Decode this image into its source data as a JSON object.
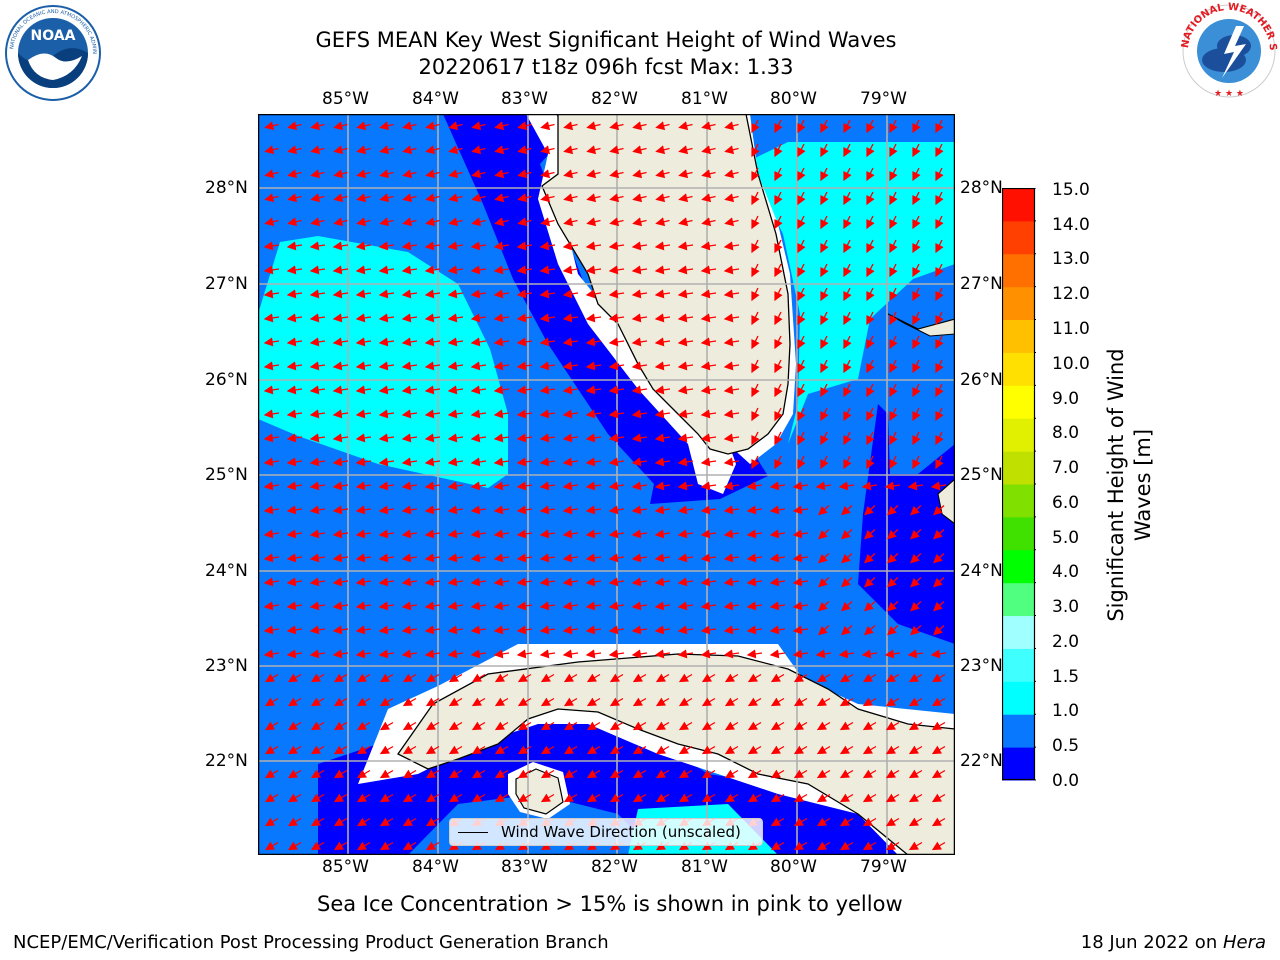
{
  "title": {
    "line1": "GEFS MEAN Key West Significant Height of Wind Waves",
    "line2": "20220617 t18z 096h fcst   Max: 1.33"
  },
  "logos": {
    "left": {
      "name": "NOAA",
      "ring_text": "NATIONAL OCEANIC AND ATMOSPHERIC ADMINISTRATION · U.S. DEPARTMENT OF COMMERCE",
      "color": "#1b5fa8"
    },
    "right": {
      "name": "NATIONAL WEATHER SERVICE",
      "color": "#e31b23"
    }
  },
  "map": {
    "lon_ticks": [
      "85°W",
      "84°W",
      "83°W",
      "82°W",
      "81°W",
      "80°W",
      "79°W"
    ],
    "lat_ticks": [
      "28°N",
      "27°N",
      "26°N",
      "25°N",
      "24°N",
      "23°N",
      "22°N"
    ],
    "lon_range": [
      -86.0,
      -78.3
    ],
    "lat_range": [
      21.0,
      28.75
    ],
    "land_color": "#eeecdc",
    "arrow_color": "#ff0000",
    "legend": "Wind Wave Direction (unscaled)"
  },
  "colorbar": {
    "label": "Significant Height of Wind Waves [m]",
    "ticks": [
      "15.0",
      "14.0",
      "13.0",
      "12.0",
      "11.0",
      "10.0",
      "9.0",
      "8.0",
      "7.0",
      "6.0",
      "5.0",
      "4.0",
      "3.0",
      "2.0",
      "1.5",
      "1.0",
      "0.5",
      "0.0"
    ],
    "colors": [
      "#0000ff",
      "#0878ff",
      "#00ffff",
      "#40ffff",
      "#a0ffff",
      "#50ff80",
      "#00ff00",
      "#40e000",
      "#80e000",
      "#c0e000",
      "#e0f000",
      "#ffff00",
      "#ffe000",
      "#ffc000",
      "#ff9000",
      "#ff7000",
      "#ff4000",
      "#ff1000"
    ]
  },
  "note": "Sea Ice Concentration > 15% is shown in pink to yellow",
  "footer": {
    "left": "NCEP/EMC/Verification Post Processing Product Generation Branch",
    "right_date": "18 Jun 2022 on ",
    "right_host": "Hera"
  }
}
